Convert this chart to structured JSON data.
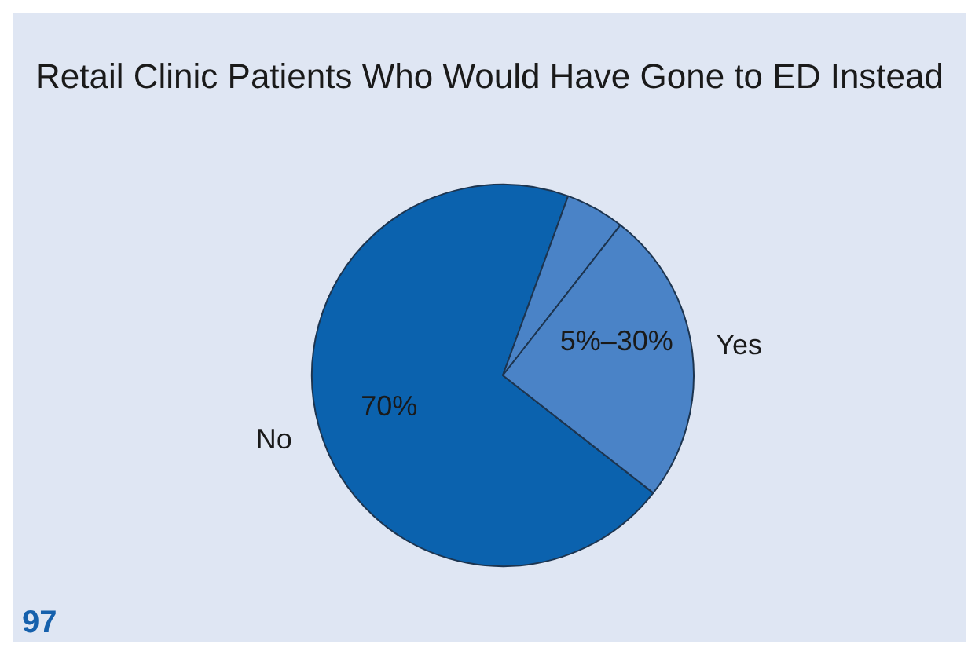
{
  "chart_data": {
    "type": "pie",
    "title": "Retail Clinic Patients Who Would Have Gone to ED Instead",
    "categories": [
      "No",
      null,
      "Yes"
    ],
    "values": [
      70,
      5,
      25
    ],
    "colors": [
      "#0b62ae",
      "#4a83c7",
      "#4a83c7"
    ],
    "value_labels": [
      "70%",
      null,
      null
    ],
    "legend": false,
    "annotations": [
      "5%–30%",
      "97"
    ]
  }
}
